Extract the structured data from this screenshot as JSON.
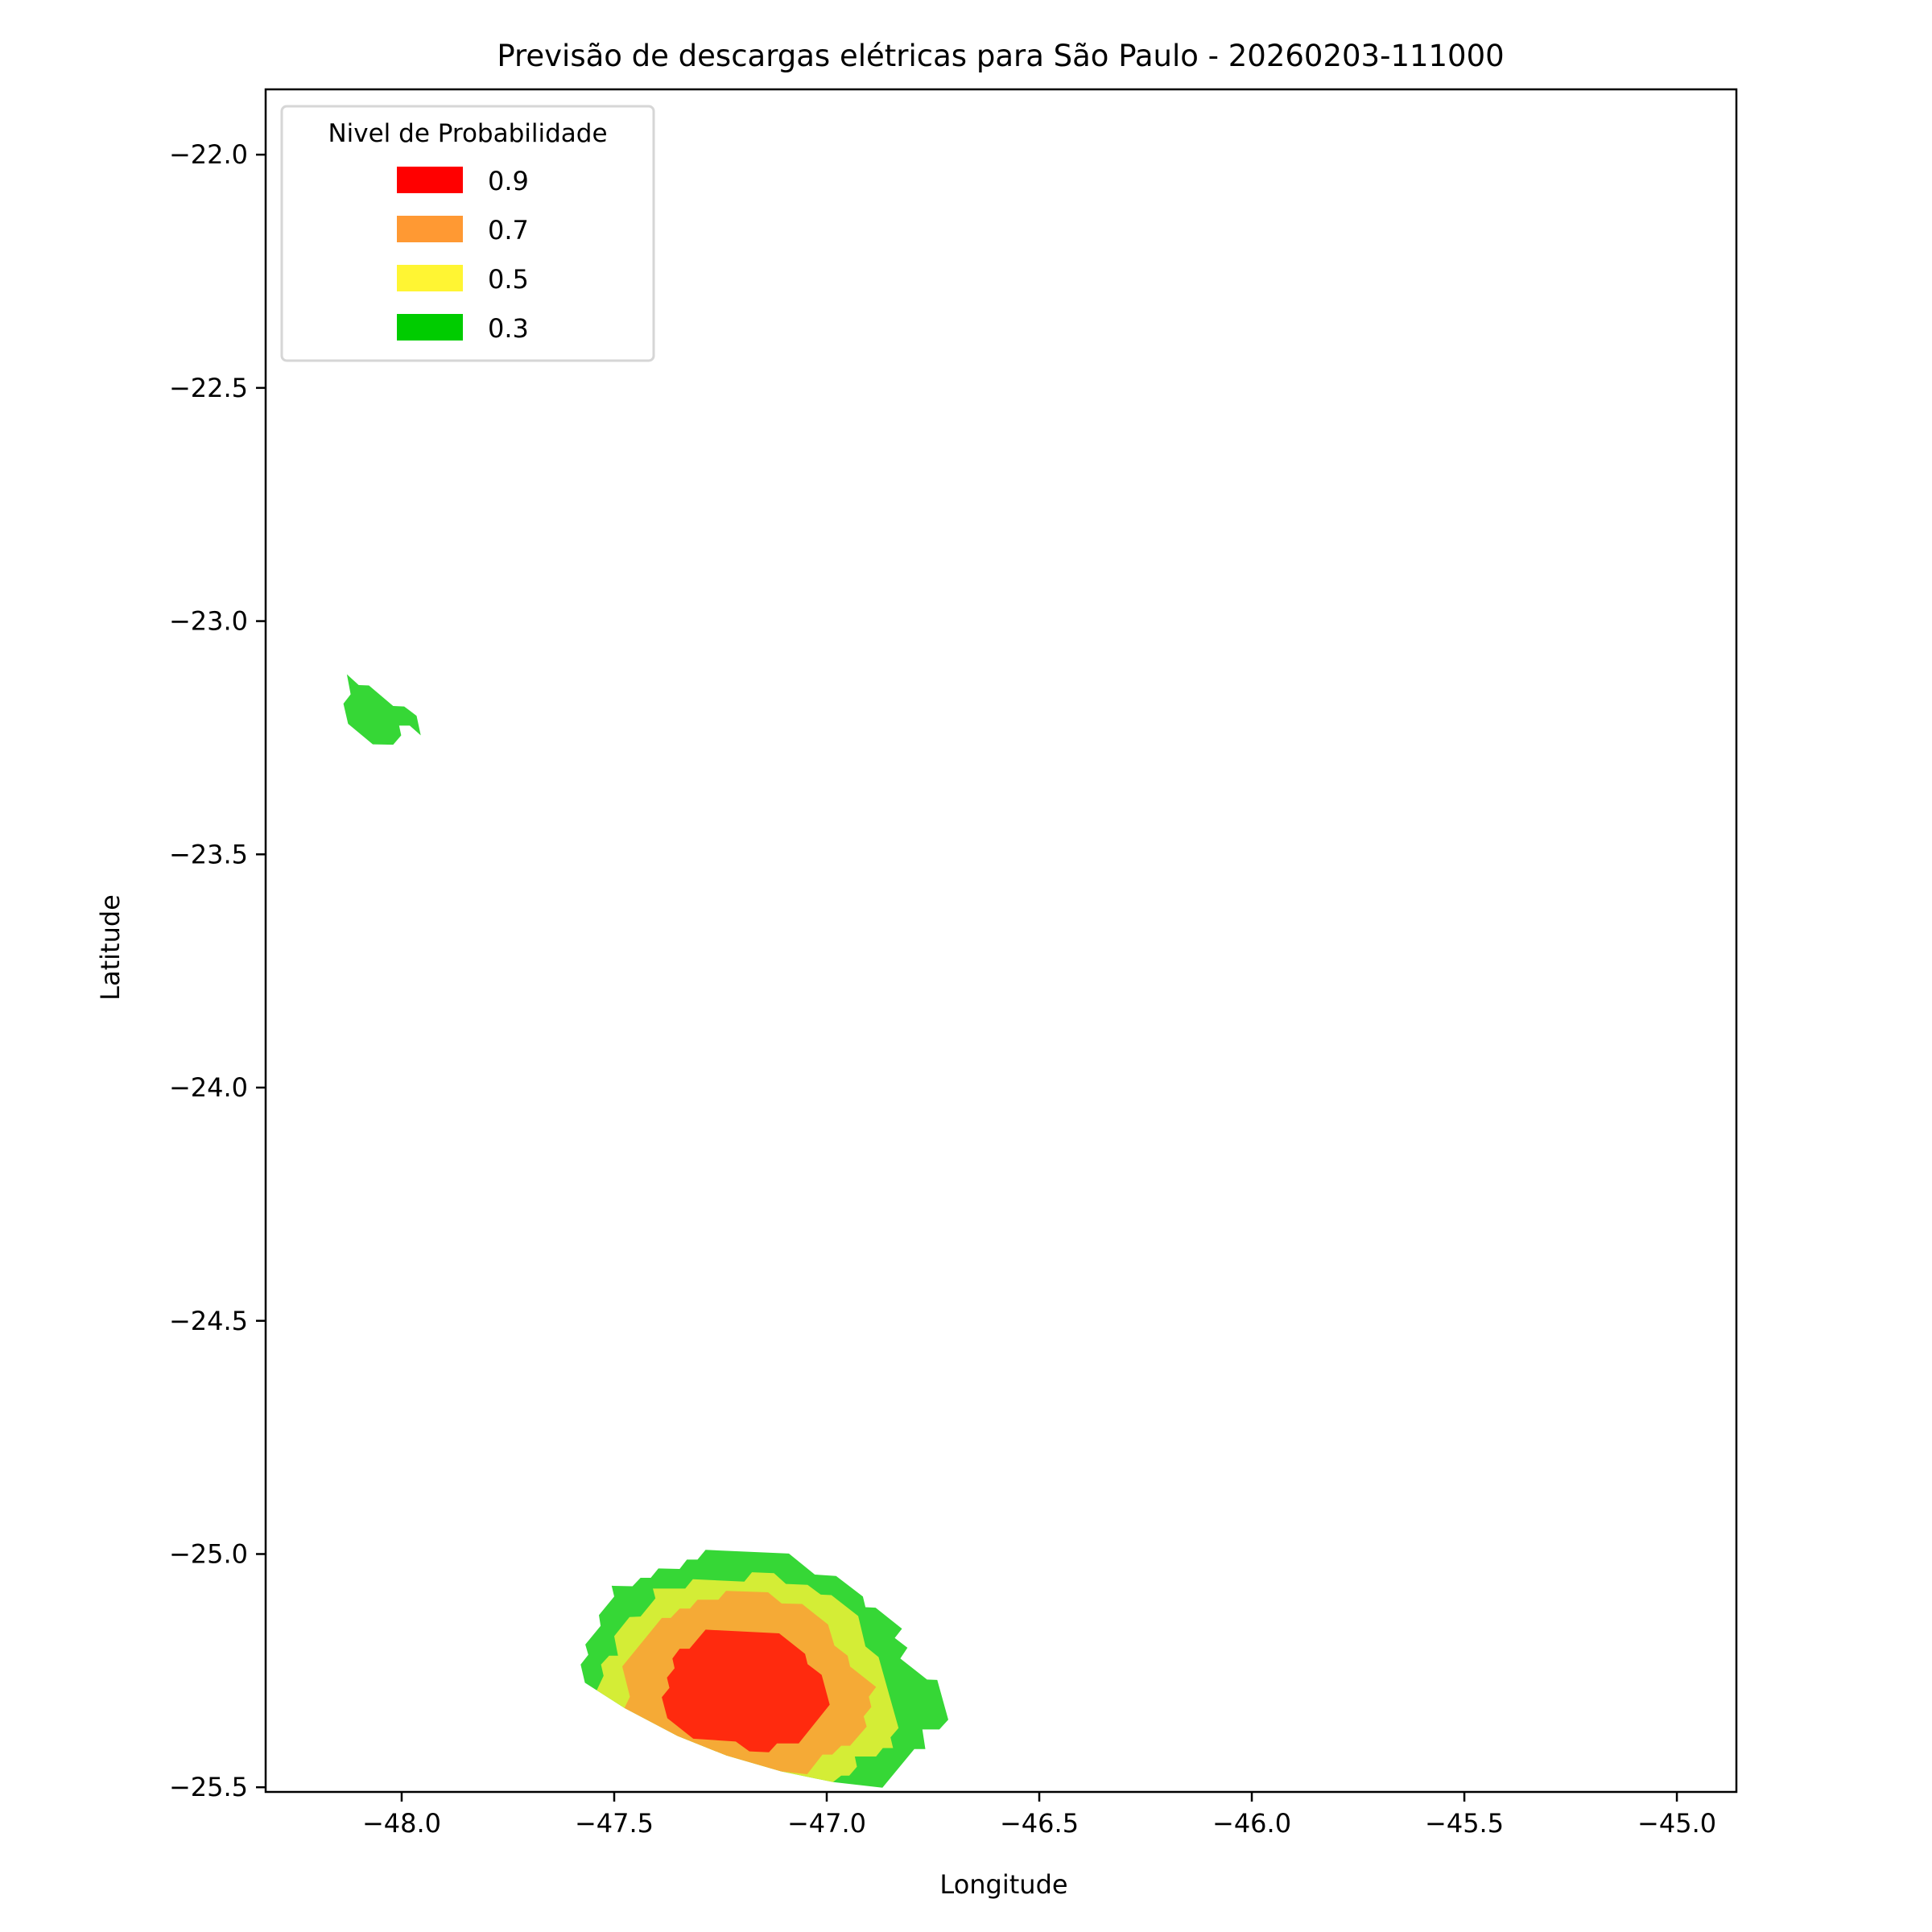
{
  "chart_data": {
    "type": "contour",
    "title": "Previsão de descargas elétricas para São Paulo - 20260203-111000",
    "xlabel": "Longitude",
    "ylabel": "Latitude",
    "xlim": [
      -48.32,
      -44.86
    ],
    "ylim": [
      -25.51,
      -21.86
    ],
    "xticks": [
      -48.0,
      -47.5,
      -47.0,
      -46.5,
      -46.0,
      -45.5,
      -45.0
    ],
    "xtick_labels": [
      "−48.0",
      "−47.5",
      "−47.0",
      "−46.5",
      "−46.0",
      "−45.5",
      "−45.0"
    ],
    "yticks": [
      -22.0,
      -22.5,
      -23.0,
      -23.5,
      -24.0,
      -24.5,
      -25.0,
      -25.5
    ],
    "ytick_labels": [
      "−22.0",
      "−22.5",
      "−23.0",
      "−23.5",
      "−24.0",
      "−24.5",
      "−25.0",
      "−25.5"
    ],
    "grid": false,
    "legend": {
      "title": "Nivel de Probabilidade",
      "placement": "top-left",
      "entries": [
        {
          "label": "0.9",
          "color": "#ff0000"
        },
        {
          "label": "0.7",
          "color": "#ff9933"
        },
        {
          "label": "0.5",
          "color": "#fff533"
        },
        {
          "label": "0.3",
          "color": "#00cc00"
        }
      ]
    },
    "regions": [
      {
        "level": 0.3,
        "fill": "#36d736",
        "points": [
          [
            -48.129,
            -23.114
          ],
          [
            -48.101,
            -23.137
          ],
          [
            -48.077,
            -23.138
          ],
          [
            -48.02,
            -23.182
          ],
          [
            -47.994,
            -23.183
          ],
          [
            -47.965,
            -23.203
          ],
          [
            -47.955,
            -23.245
          ],
          [
            -47.981,
            -23.224
          ],
          [
            -48.006,
            -23.224
          ],
          [
            -48.001,
            -23.245
          ],
          [
            -48.02,
            -23.265
          ],
          [
            -48.068,
            -23.264
          ],
          [
            -48.126,
            -23.22
          ],
          [
            -48.137,
            -23.177
          ],
          [
            -48.12,
            -23.157
          ]
        ]
      },
      {
        "level": 0.3,
        "fill": "#36d736",
        "points": [
          [
            -47.285,
            -24.991
          ],
          [
            -47.089,
            -24.999
          ],
          [
            -47.028,
            -25.044
          ],
          [
            -46.978,
            -25.047
          ],
          [
            -46.915,
            -25.091
          ],
          [
            -46.909,
            -25.114
          ],
          [
            -46.885,
            -25.115
          ],
          [
            -46.823,
            -25.16
          ],
          [
            -46.84,
            -25.18
          ],
          [
            -46.81,
            -25.201
          ],
          [
            -46.827,
            -25.224
          ],
          [
            -46.764,
            -25.269
          ],
          [
            -46.74,
            -25.27
          ],
          [
            -46.714,
            -25.355
          ],
          [
            -46.735,
            -25.376
          ],
          [
            -46.775,
            -25.376
          ],
          [
            -46.768,
            -25.418
          ],
          [
            -46.794,
            -25.418
          ],
          [
            -46.869,
            -25.501
          ],
          [
            -46.985,
            -25.489
          ],
          [
            -47.107,
            -25.466
          ],
          [
            -47.236,
            -25.432
          ],
          [
            -47.351,
            -25.39
          ],
          [
            -47.476,
            -25.33
          ],
          [
            -47.569,
            -25.276
          ],
          [
            -47.579,
            -25.237
          ],
          [
            -47.561,
            -25.216
          ],
          [
            -47.568,
            -25.194
          ],
          [
            -47.532,
            -25.154
          ],
          [
            -47.536,
            -25.131
          ],
          [
            -47.5,
            -25.091
          ],
          [
            -47.506,
            -25.068
          ],
          [
            -47.457,
            -25.069
          ],
          [
            -47.438,
            -25.051
          ],
          [
            -47.414,
            -25.051
          ],
          [
            -47.396,
            -25.031
          ],
          [
            -47.346,
            -25.032
          ],
          [
            -47.329,
            -25.012
          ],
          [
            -47.304,
            -25.012
          ]
        ]
      },
      {
        "level": 0.5,
        "fill": "#d4ed36",
        "points": [
          [
            -47.409,
            -25.074
          ],
          [
            -47.333,
            -25.074
          ],
          [
            -47.315,
            -25.054
          ],
          [
            -47.194,
            -25.059
          ],
          [
            -47.176,
            -25.039
          ],
          [
            -47.124,
            -25.041
          ],
          [
            -47.096,
            -25.064
          ],
          [
            -47.045,
            -25.066
          ],
          [
            -47.014,
            -25.087
          ],
          [
            -46.989,
            -25.088
          ],
          [
            -46.926,
            -25.133
          ],
          [
            -46.909,
            -25.198
          ],
          [
            -46.878,
            -25.221
          ],
          [
            -46.831,
            -25.373
          ],
          [
            -46.85,
            -25.393
          ],
          [
            -46.844,
            -25.416
          ],
          [
            -46.868,
            -25.416
          ],
          [
            -46.884,
            -25.434
          ],
          [
            -46.934,
            -25.434
          ],
          [
            -46.929,
            -25.456
          ],
          [
            -46.947,
            -25.475
          ],
          [
            -46.966,
            -25.475
          ],
          [
            -46.985,
            -25.489
          ],
          [
            -47.107,
            -25.466
          ],
          [
            -47.236,
            -25.432
          ],
          [
            -47.351,
            -25.39
          ],
          [
            -47.476,
            -25.33
          ],
          [
            -47.541,
            -25.292
          ],
          [
            -47.525,
            -25.261
          ],
          [
            -47.531,
            -25.237
          ],
          [
            -47.512,
            -25.218
          ],
          [
            -47.491,
            -25.218
          ],
          [
            -47.5,
            -25.176
          ],
          [
            -47.464,
            -25.135
          ],
          [
            -47.438,
            -25.134
          ],
          [
            -47.403,
            -25.095
          ]
        ]
      },
      {
        "level": 0.7,
        "fill": "#f5aa36",
        "points": [
          [
            -47.388,
            -25.137
          ],
          [
            -47.367,
            -25.137
          ],
          [
            -47.346,
            -25.117
          ],
          [
            -47.322,
            -25.117
          ],
          [
            -47.304,
            -25.098
          ],
          [
            -47.255,
            -25.098
          ],
          [
            -47.237,
            -25.079
          ],
          [
            -47.138,
            -25.082
          ],
          [
            -47.106,
            -25.106
          ],
          [
            -47.058,
            -25.107
          ],
          [
            -46.997,
            -25.151
          ],
          [
            -46.982,
            -25.196
          ],
          [
            -46.951,
            -25.218
          ],
          [
            -46.945,
            -25.241
          ],
          [
            -46.884,
            -25.285
          ],
          [
            -46.901,
            -25.306
          ],
          [
            -46.895,
            -25.328
          ],
          [
            -46.913,
            -25.348
          ],
          [
            -46.906,
            -25.37
          ],
          [
            -46.945,
            -25.411
          ],
          [
            -46.966,
            -25.411
          ],
          [
            -46.987,
            -25.43
          ],
          [
            -47.01,
            -25.43
          ],
          [
            -47.046,
            -25.472
          ],
          [
            -47.107,
            -25.466
          ],
          [
            -47.236,
            -25.432
          ],
          [
            -47.351,
            -25.39
          ],
          [
            -47.476,
            -25.33
          ],
          [
            -47.463,
            -25.306
          ],
          [
            -47.481,
            -25.241
          ]
        ]
      },
      {
        "level": 0.9,
        "fill": "#ff2a0e",
        "points": [
          [
            -47.285,
            -25.162
          ],
          [
            -47.112,
            -25.17
          ],
          [
            -47.051,
            -25.214
          ],
          [
            -47.045,
            -25.236
          ],
          [
            -47.012,
            -25.259
          ],
          [
            -46.993,
            -25.323
          ],
          [
            -47.066,
            -25.406
          ],
          [
            -47.117,
            -25.406
          ],
          [
            -47.136,
            -25.425
          ],
          [
            -47.182,
            -25.423
          ],
          [
            -47.214,
            -25.402
          ],
          [
            -47.314,
            -25.396
          ],
          [
            -47.375,
            -25.352
          ],
          [
            -47.388,
            -25.307
          ],
          [
            -47.37,
            -25.287
          ],
          [
            -47.376,
            -25.265
          ],
          [
            -47.358,
            -25.245
          ],
          [
            -47.363,
            -25.224
          ],
          [
            -47.346,
            -25.203
          ],
          [
            -47.323,
            -25.203
          ]
        ]
      }
    ]
  }
}
